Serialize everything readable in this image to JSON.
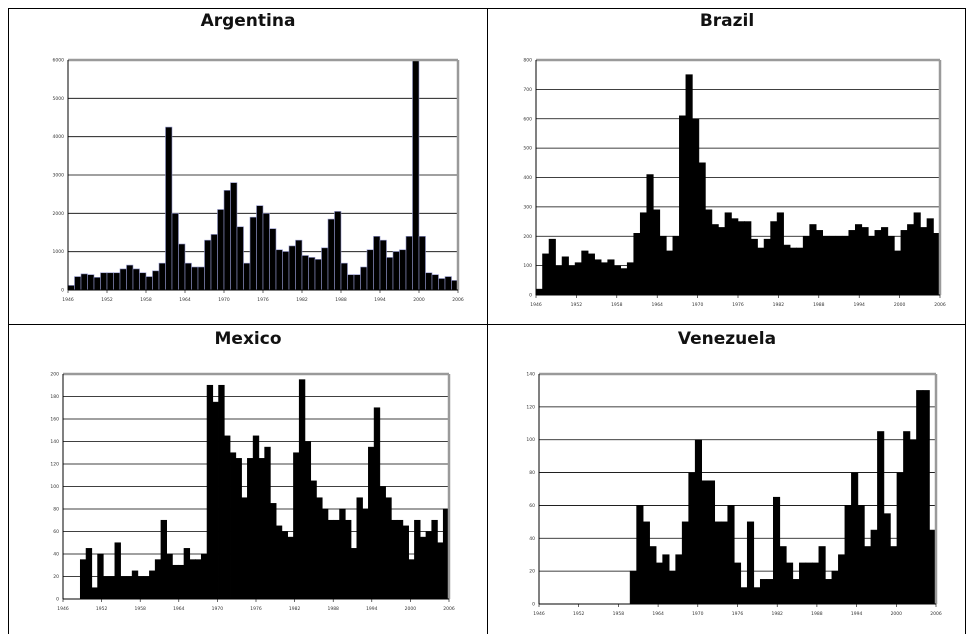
{
  "chart_data": [
    {
      "type": "bar",
      "title": "Argentina",
      "x_start": 1946,
      "x_ticks": [
        "1946",
        "1952",
        "1958",
        "1964",
        "1970",
        "1976",
        "1982",
        "1988",
        "1994",
        "2000",
        "2006"
      ],
      "y_ticks": [
        "0",
        "1000",
        "2000",
        "3000",
        "4000",
        "5000",
        "6000"
      ],
      "ylim": [
        0,
        6000
      ],
      "grid": true,
      "bar_color": "#000000",
      "bar_edge_color": "#8f93c8",
      "values": [
        120,
        350,
        420,
        400,
        330,
        450,
        450,
        450,
        550,
        650,
        550,
        450,
        350,
        500,
        700,
        4250,
        2000,
        1200,
        700,
        600,
        600,
        1300,
        1450,
        2100,
        2600,
        2800,
        1650,
        700,
        1900,
        2200,
        2000,
        1600,
        1050,
        1000,
        1150,
        1300,
        900,
        850,
        800,
        1100,
        1850,
        2050,
        700,
        400,
        400,
        600,
        1050,
        1400,
        1300,
        850,
        1000,
        1050,
        1400,
        6000,
        1400,
        450,
        400,
        300,
        350,
        250
      ]
    },
    {
      "type": "bar",
      "title": "Brazil",
      "x_start": 1946,
      "x_ticks": [
        "1946",
        "1952",
        "1958",
        "1964",
        "1970",
        "1976",
        "1982",
        "1988",
        "1994",
        "2000",
        "2006"
      ],
      "y_ticks": [
        "0",
        "100",
        "200",
        "300",
        "400",
        "500",
        "600",
        "700",
        "800"
      ],
      "ylim": [
        0,
        800
      ],
      "grid": true,
      "bar_color": "#000000",
      "bar_edge_color": "#000000",
      "values": [
        20,
        140,
        190,
        100,
        130,
        100,
        110,
        150,
        140,
        120,
        110,
        120,
        100,
        90,
        110,
        210,
        280,
        410,
        290,
        200,
        150,
        200,
        610,
        750,
        600,
        450,
        290,
        240,
        230,
        280,
        260,
        250,
        250,
        190,
        160,
        190,
        250,
        280,
        170,
        160,
        160,
        200,
        240,
        220,
        200,
        200,
        200,
        200,
        220,
        240,
        230,
        200,
        220,
        230,
        200,
        150,
        220,
        240,
        280,
        230,
        260,
        210
      ]
    },
    {
      "type": "bar",
      "title": "Mexico",
      "x_start": 1946,
      "x_ticks": [
        "1946",
        "1952",
        "1958",
        "1964",
        "1970",
        "1976",
        "1982",
        "1988",
        "1994",
        "2000",
        "2006"
      ],
      "y_ticks": [
        "0",
        "20",
        "40",
        "60",
        "80",
        "100",
        "120",
        "140",
        "160",
        "180",
        "200"
      ],
      "ylim": [
        0,
        200
      ],
      "grid": true,
      "bar_color": "#000000",
      "bar_edge_color": "#000000",
      "values": [
        0,
        0,
        0,
        35,
        45,
        10,
        40,
        20,
        20,
        50,
        20,
        20,
        25,
        20,
        20,
        25,
        35,
        70,
        40,
        30,
        30,
        45,
        35,
        35,
        40,
        190,
        175,
        190,
        145,
        130,
        125,
        90,
        125,
        145,
        125,
        135,
        85,
        65,
        60,
        55,
        130,
        195,
        140,
        105,
        90,
        80,
        70,
        70,
        80,
        70,
        45,
        90,
        80,
        135,
        170,
        100,
        90,
        70,
        70,
        65,
        35,
        70,
        55,
        60,
        70,
        50,
        80
      ]
    },
    {
      "type": "bar",
      "title": "Venezuela",
      "x_start": 1946,
      "x_ticks": [
        "1946",
        "1952",
        "1958",
        "1964",
        "1970",
        "1976",
        "1982",
        "1988",
        "1994",
        "2000",
        "2006"
      ],
      "y_ticks": [
        "0",
        "20",
        "40",
        "60",
        "80",
        "100",
        "120",
        "140"
      ],
      "ylim": [
        0,
        140
      ],
      "grid": true,
      "bar_color": "#000000",
      "bar_edge_color": "#000000",
      "values": [
        0,
        0,
        0,
        0,
        0,
        0,
        0,
        0,
        0,
        0,
        0,
        0,
        0,
        0,
        20,
        60,
        50,
        35,
        25,
        30,
        20,
        30,
        50,
        80,
        100,
        75,
        75,
        50,
        50,
        60,
        25,
        10,
        50,
        10,
        15,
        15,
        65,
        35,
        25,
        15,
        25,
        25,
        25,
        35,
        15,
        20,
        30,
        60,
        80,
        60,
        35,
        45,
        105,
        55,
        35,
        80,
        105,
        100,
        130,
        130,
        45
      ]
    }
  ]
}
